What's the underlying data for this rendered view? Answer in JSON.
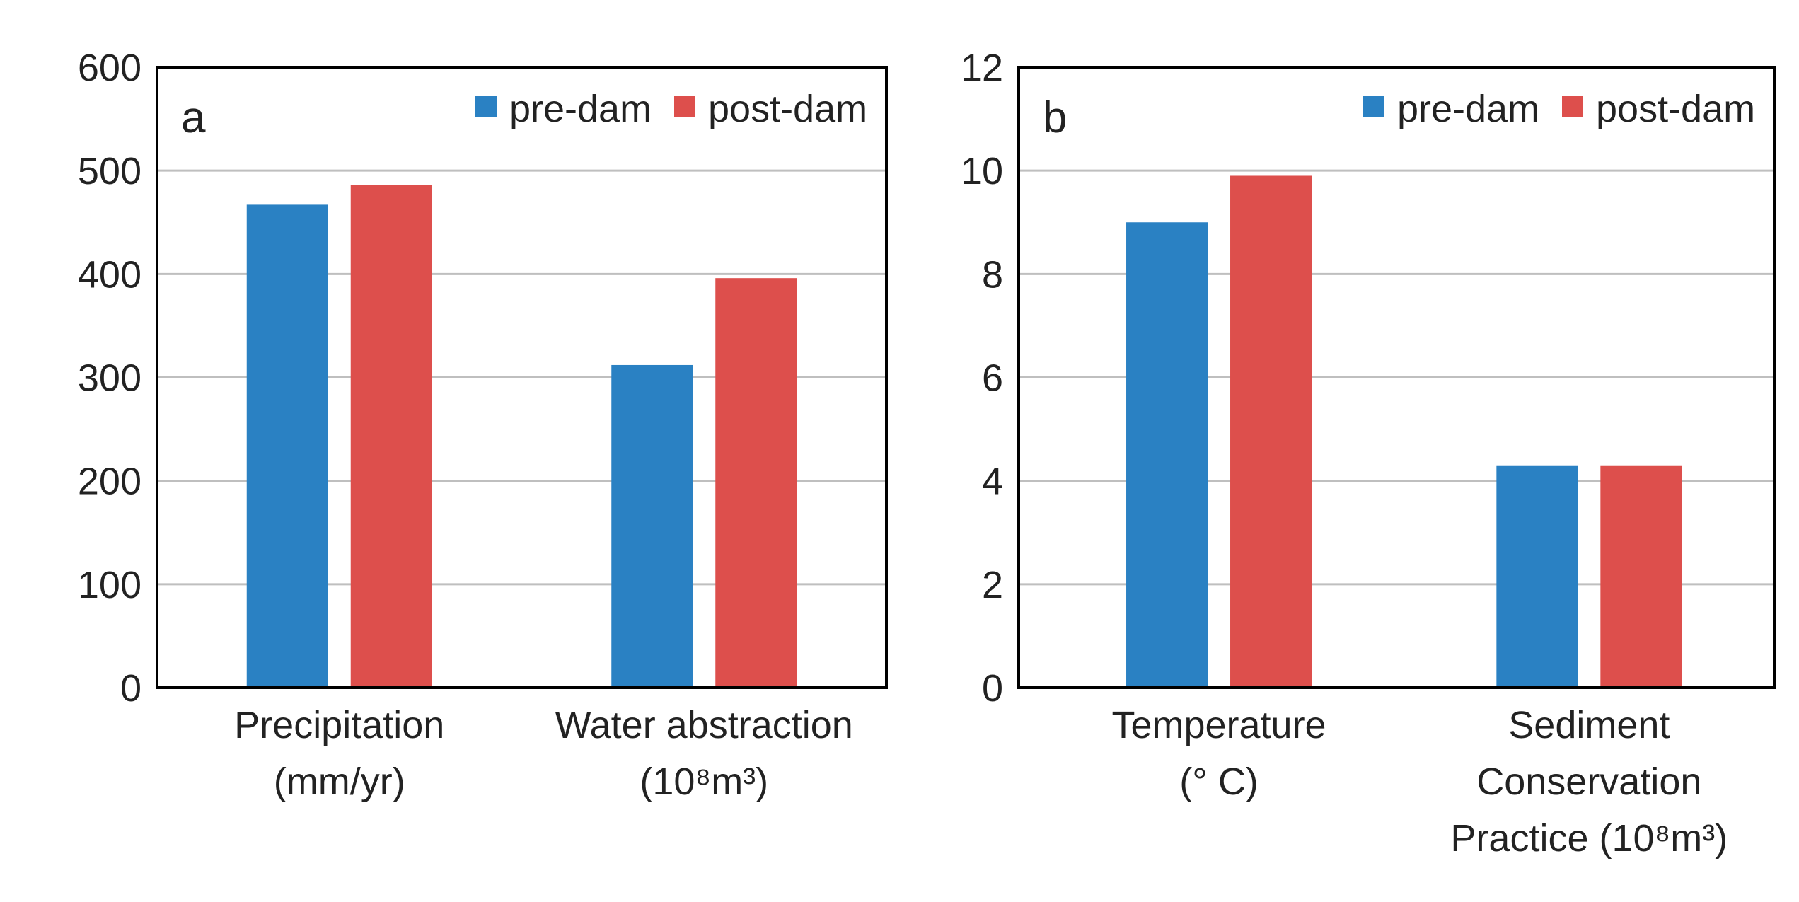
{
  "colors": {
    "pre": "#2a81c3",
    "post": "#dd4f4c",
    "grid": "#bfbfbf",
    "axis": "#000000"
  },
  "chart_data": [
    {
      "type": "bar",
      "panel_label": "a",
      "categories": [
        [
          "Precipitation",
          "(mm/yr)"
        ],
        [
          "Water abstraction",
          "(10⁸m³)"
        ]
      ],
      "series": [
        {
          "name": "pre-dam",
          "values": [
            467,
            312
          ]
        },
        {
          "name": "post-dam",
          "values": [
            486,
            396
          ]
        }
      ],
      "ylim": [
        0,
        600
      ],
      "yticks": [
        0,
        100,
        200,
        300,
        400,
        500,
        600
      ],
      "grid": true,
      "legend": "top-right"
    },
    {
      "type": "bar",
      "panel_label": "b",
      "categories": [
        [
          "Temperature",
          "(°  C)"
        ],
        [
          "Sediment",
          "Conservation",
          "Practice (10⁸m³)"
        ]
      ],
      "series": [
        {
          "name": "pre-dam",
          "values": [
            9.0,
            4.3
          ]
        },
        {
          "name": "post-dam",
          "values": [
            9.9,
            4.3
          ]
        }
      ],
      "ylim": [
        0,
        12
      ],
      "yticks": [
        0,
        2,
        4,
        6,
        8,
        10,
        12
      ],
      "grid": true,
      "legend": "top-right"
    }
  ]
}
